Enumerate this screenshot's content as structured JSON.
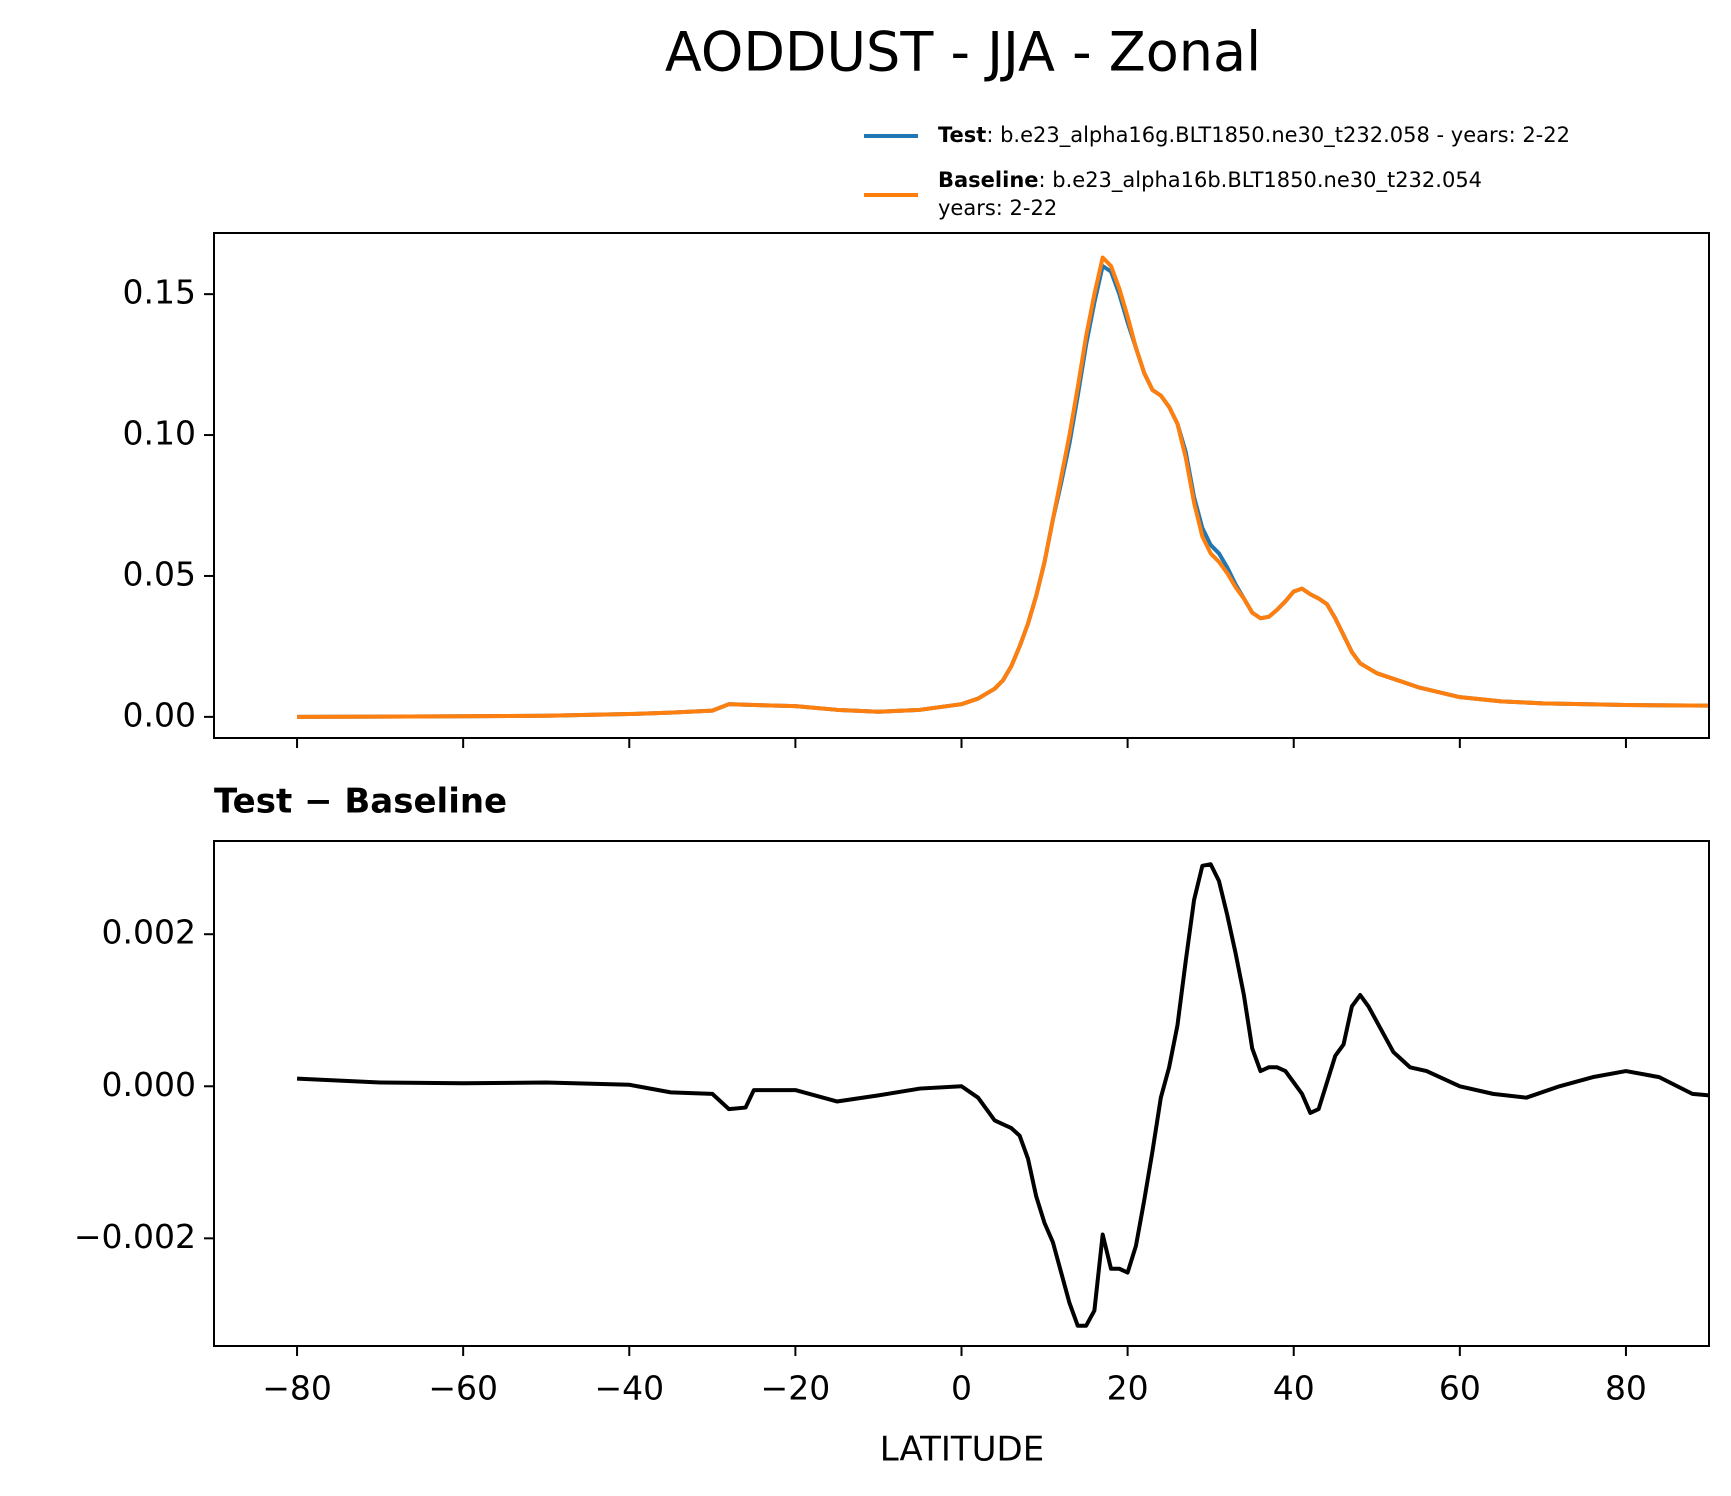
{
  "chart_data": [
    {
      "type": "line",
      "title": "AODDUST - JJA - Zonal",
      "x": [
        -80,
        -70,
        -60,
        -50,
        -40,
        -35,
        -30,
        -28,
        -26,
        -20,
        -15,
        -10,
        -5,
        0,
        2,
        4,
        5,
        6,
        7,
        8,
        9,
        10,
        11,
        12,
        13,
        14,
        15,
        16,
        17,
        18,
        19,
        20,
        21,
        22,
        23,
        24,
        25,
        26,
        27,
        28,
        29,
        30,
        31,
        32,
        33,
        34,
        35,
        36,
        37,
        38,
        39,
        40,
        41,
        42,
        43,
        44,
        45,
        46,
        47,
        48,
        50,
        55,
        60,
        65,
        70,
        80,
        90
      ],
      "series": [
        {
          "name": "Test",
          "description": [
            ": b.e23_alpha16g.BLT1850.ne30_t232.058 - years: 2-22"
          ],
          "color": "#1f77b4",
          "values": [
            0.0,
            0.0001,
            0.0002,
            0.0004,
            0.001,
            0.0015,
            0.0022,
            0.0045,
            0.0043,
            0.0038,
            0.0025,
            0.0018,
            0.0025,
            0.0045,
            0.0065,
            0.01,
            0.013,
            0.018,
            0.025,
            0.033,
            0.043,
            0.055,
            0.07,
            0.083,
            0.097,
            0.114,
            0.132,
            0.147,
            0.16,
            0.158,
            0.15,
            0.14,
            0.131,
            0.122,
            0.116,
            0.114,
            0.11,
            0.104,
            0.094,
            0.078,
            0.067,
            0.061,
            0.058,
            0.053,
            0.047,
            0.042,
            0.037,
            0.035,
            0.0355,
            0.038,
            0.041,
            0.0445,
            0.0455,
            0.0435,
            0.042,
            0.04,
            0.035,
            0.029,
            0.023,
            0.019,
            0.0155,
            0.0105,
            0.007,
            0.0055,
            0.0048,
            0.0042,
            0.004
          ]
        },
        {
          "name": "Baseline",
          "description": [
            ": b.e23_alpha16b.BLT1850.ne30_t232.054",
            "years: 2-22"
          ],
          "color": "#ff7f0e",
          "values": [
            0.0,
            0.0001,
            0.0002,
            0.0004,
            0.001,
            0.0015,
            0.0022,
            0.0045,
            0.0043,
            0.0038,
            0.0025,
            0.0018,
            0.0025,
            0.0045,
            0.0065,
            0.01,
            0.013,
            0.018,
            0.025,
            0.033,
            0.043,
            0.055,
            0.07,
            0.085,
            0.1,
            0.117,
            0.135,
            0.15,
            0.163,
            0.16,
            0.152,
            0.142,
            0.131,
            0.122,
            0.116,
            0.114,
            0.11,
            0.104,
            0.092,
            0.076,
            0.064,
            0.058,
            0.055,
            0.051,
            0.046,
            0.042,
            0.037,
            0.035,
            0.0355,
            0.038,
            0.041,
            0.0445,
            0.0455,
            0.0435,
            0.042,
            0.04,
            0.035,
            0.029,
            0.023,
            0.019,
            0.0155,
            0.0105,
            0.007,
            0.0055,
            0.0048,
            0.0042,
            0.004
          ]
        }
      ],
      "xlim": [
        -90,
        90
      ],
      "xticks": [
        {
          "value": -80,
          "label": "−80"
        },
        {
          "value": -60,
          "label": "−60"
        },
        {
          "value": -40,
          "label": "−40"
        },
        {
          "value": -20,
          "label": "−20"
        },
        0,
        20,
        40,
        60,
        80
      ],
      "xtick_labels": false,
      "ylim": [
        -0.0075,
        0.1717
      ],
      "yticks": [
        {
          "value": 0,
          "label": "0.00"
        },
        {
          "value": 0.05,
          "label": "0.05"
        },
        {
          "value": 0.1,
          "label": "0.10"
        },
        {
          "value": 0.15,
          "label": "0.15"
        }
      ],
      "legend": "upper right"
    },
    {
      "type": "line",
      "subtitle": "Test − Baseline",
      "xlabel": "LATITUDE",
      "x": [
        -80,
        -70,
        -60,
        -50,
        -40,
        -35,
        -30,
        -28,
        -26,
        -25,
        -20,
        -15,
        -10,
        -5,
        0,
        2,
        4,
        5,
        6,
        7,
        8,
        9,
        10,
        11,
        12,
        13,
        14,
        15,
        16,
        17,
        18,
        19,
        20,
        21,
        22,
        23,
        24,
        25,
        26,
        27,
        28,
        29,
        30,
        31,
        32,
        33,
        34,
        35,
        36,
        37,
        38,
        39,
        40,
        41,
        42,
        43,
        44,
        45,
        46,
        47,
        48,
        49,
        50,
        52,
        54,
        56,
        60,
        64,
        68,
        72,
        76,
        80,
        84,
        88,
        90
      ],
      "series": [
        {
          "color": "#000000",
          "values": [
            0.0001,
            5e-05,
            4e-05,
            5e-05,
            2e-05,
            -8e-05,
            -0.0001,
            -0.0003,
            -0.00028,
            -5e-05,
            -5e-05,
            -0.0002,
            -0.00012,
            -3e-05,
            0.0,
            -0.00015,
            -0.00045,
            -0.0005,
            -0.00055,
            -0.00065,
            -0.00095,
            -0.00145,
            -0.0018,
            -0.00205,
            -0.00245,
            -0.00285,
            -0.00315,
            -0.00315,
            -0.00295,
            -0.00195,
            -0.0024,
            -0.0024,
            -0.00245,
            -0.0021,
            -0.0015,
            -0.00085,
            -0.00015,
            0.00025,
            0.0008,
            0.00165,
            0.00245,
            0.0029,
            0.00292,
            0.0027,
            0.00225,
            0.00175,
            0.0012,
            0.0005,
            0.0002,
            0.00025,
            0.00025,
            0.0002,
            5e-05,
            -0.0001,
            -0.00035,
            -0.0003,
            5e-05,
            0.0004,
            0.00055,
            0.00105,
            0.0012,
            0.00105,
            0.00085,
            0.00045,
            0.00025,
            0.0002,
            0.0,
            -0.0001,
            -0.00015,
            0.0,
            0.00012,
            0.0002,
            0.00012,
            -0.0001,
            -0.00012
          ]
        }
      ],
      "xlim": [
        -90,
        90
      ],
      "xticks": [
        {
          "value": -80,
          "label": "−80"
        },
        {
          "value": -60,
          "label": "−60"
        },
        {
          "value": -40,
          "label": "−40"
        },
        {
          "value": -20,
          "label": "−20"
        },
        0,
        20,
        40,
        60,
        80
      ],
      "xtick_labels": true,
      "ylim": [
        -0.003416,
        0.003226
      ],
      "yticks": [
        {
          "value": -0.002,
          "label": "−0.002"
        },
        {
          "value": 0,
          "label": "0.000"
        },
        {
          "value": 0.002,
          "label": "0.002"
        }
      ]
    }
  ]
}
